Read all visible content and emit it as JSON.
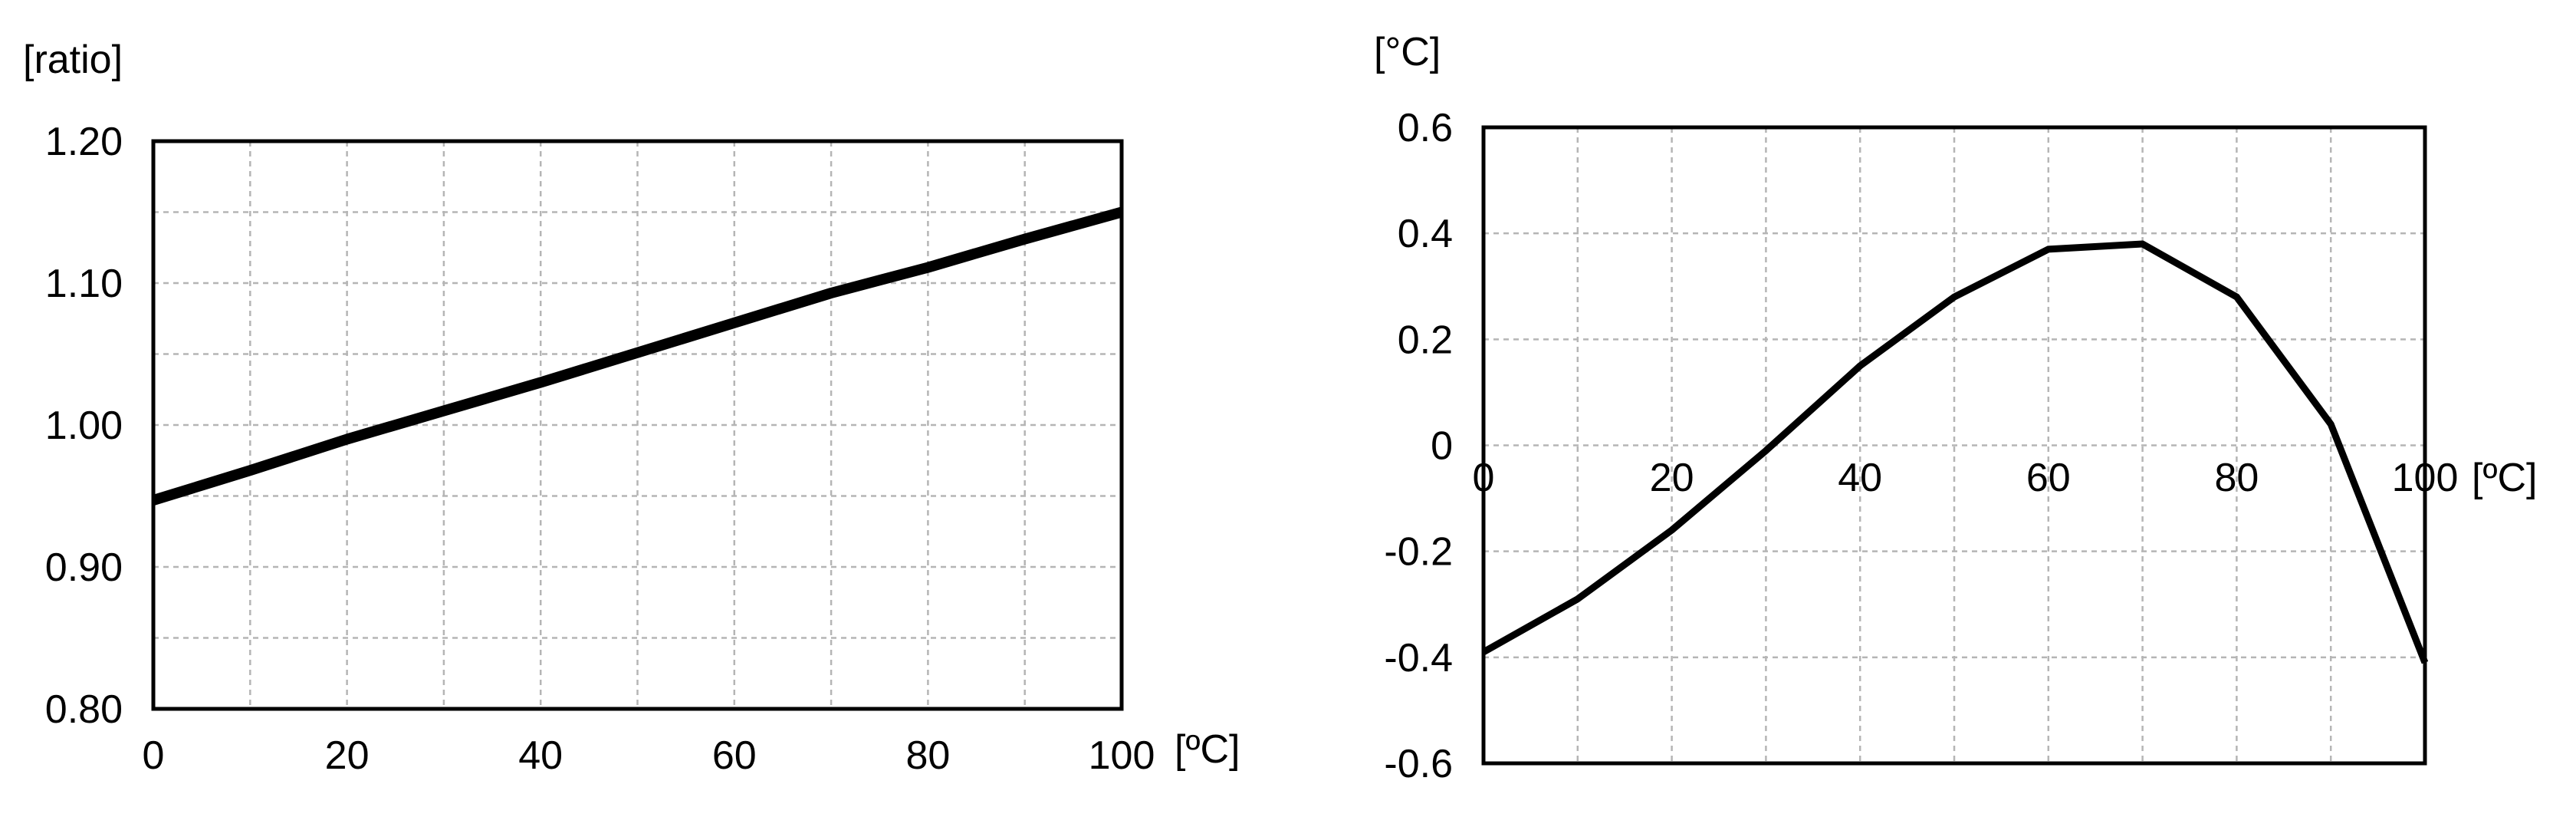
{
  "chart_data": [
    {
      "type": "line",
      "title": "",
      "xlabel": "[ºC]",
      "ylabel": "[ratio]",
      "xlim": [
        0,
        100
      ],
      "ylim": [
        0.8,
        1.2
      ],
      "x_ticks": [
        "0",
        "20",
        "40",
        "60",
        "80",
        "100"
      ],
      "y_ticks": [
        "0.80",
        "0.90",
        "1.00",
        "1.10",
        "1.20"
      ],
      "x_ticks_values": [
        0,
        20,
        40,
        60,
        80,
        100
      ],
      "y_ticks_values": [
        0.8,
        0.9,
        1.0,
        1.1,
        1.2
      ],
      "grid": true,
      "series": [
        {
          "x": [
            0,
            10,
            20,
            30,
            40,
            50,
            60,
            70,
            80,
            90,
            100
          ],
          "y": [
            0.947,
            0.968,
            0.99,
            1.01,
            1.03,
            1.051,
            1.072,
            1.093,
            1.111,
            1.131,
            1.15
          ],
          "color": "#000000"
        }
      ]
    },
    {
      "type": "line",
      "title": "",
      "xlabel": "[ºC]",
      "ylabel": "[°C]",
      "xlim": [
        0,
        100
      ],
      "ylim": [
        -0.6,
        0.6
      ],
      "x_ticks": [
        "0",
        "20",
        "40",
        "60",
        "80",
        "100"
      ],
      "y_ticks": [
        "0.6",
        "0.4",
        "0.2",
        "0",
        "-0.2",
        "-0.4",
        "-0.6"
      ],
      "x_ticks_values": [
        0,
        20,
        40,
        60,
        80,
        100
      ],
      "y_ticks_values": [
        0.6,
        0.4,
        0.2,
        0,
        -0.2,
        -0.4,
        -0.6
      ],
      "grid": true,
      "series": [
        {
          "x": [
            0,
            10,
            20,
            30,
            40,
            50,
            60,
            70,
            80,
            90,
            100
          ],
          "y": [
            -0.39,
            -0.29,
            -0.16,
            -0.01,
            0.15,
            0.28,
            0.37,
            0.38,
            0.28,
            0.04,
            -0.41
          ],
          "color": "#000000"
        }
      ]
    }
  ]
}
